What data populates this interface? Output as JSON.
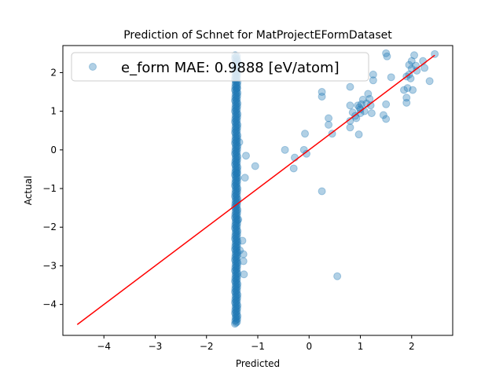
{
  "chart_data": {
    "type": "scatter",
    "title": "Prediction of Schnet for MatProjectEFormDataset",
    "xlabel": "Predicted",
    "ylabel": "Actual",
    "xlim": [
      -4.8,
      2.8
    ],
    "ylim": [
      -4.8,
      2.7
    ],
    "xticks": [
      -4,
      -3,
      -2,
      -1,
      0,
      1,
      2
    ],
    "yticks": [
      -4,
      -3,
      -2,
      -1,
      0,
      1,
      2
    ],
    "xtick_labels": [
      "−4",
      "−3",
      "−2",
      "−1",
      "0",
      "1",
      "2"
    ],
    "ytick_labels": [
      "−4",
      "−3",
      "−2",
      "−1",
      "0",
      "1",
      "2"
    ],
    "grid": false,
    "legend_position": "top",
    "series": [
      {
        "name": "e_form MAE: 0.9888 [eV/atom]",
        "color": "#1f77b4",
        "alpha": 0.35,
        "cluster": {
          "x": -1.42,
          "x_spread": 0.05,
          "y_min": -4.5,
          "y_max": 2.45,
          "step": 0.025
        },
        "points": [
          [
            -1.38,
            2.2
          ],
          [
            -1.4,
            1.6
          ],
          [
            -1.36,
            0.2
          ],
          [
            -1.4,
            -0.6
          ],
          [
            -1.38,
            -1.8
          ],
          [
            -1.35,
            -2.6
          ],
          [
            -1.3,
            -2.35
          ],
          [
            -1.28,
            -2.7
          ],
          [
            -1.28,
            -2.88
          ],
          [
            -1.27,
            -3.22
          ],
          [
            -1.23,
            -0.15
          ],
          [
            -1.25,
            -0.72
          ],
          [
            -1.05,
            -0.42
          ],
          [
            -0.47,
            0.0
          ],
          [
            -0.28,
            -0.2
          ],
          [
            -0.3,
            -0.48
          ],
          [
            -0.1,
            0.0
          ],
          [
            -0.08,
            0.42
          ],
          [
            -0.05,
            -0.1
          ],
          [
            0.25,
            1.5
          ],
          [
            0.25,
            1.38
          ],
          [
            0.25,
            -1.07
          ],
          [
            0.38,
            0.82
          ],
          [
            0.38,
            0.65
          ],
          [
            0.45,
            0.42
          ],
          [
            0.55,
            -3.27
          ],
          [
            0.8,
            1.15
          ],
          [
            0.8,
            0.75
          ],
          [
            0.8,
            0.58
          ],
          [
            0.8,
            1.63
          ],
          [
            0.85,
            0.97
          ],
          [
            0.9,
            0.88
          ],
          [
            0.92,
            0.82
          ],
          [
            0.95,
            1.15
          ],
          [
            0.98,
            1.1
          ],
          [
            1.0,
            1.05
          ],
          [
            1.0,
            0.95
          ],
          [
            0.97,
            0.4
          ],
          [
            1.02,
            1.18
          ],
          [
            1.05,
            1.3
          ],
          [
            1.08,
            1.0
          ],
          [
            1.12,
            1.2
          ],
          [
            1.15,
            1.45
          ],
          [
            1.18,
            1.32
          ],
          [
            1.2,
            1.15
          ],
          [
            1.22,
            0.95
          ],
          [
            1.25,
            1.8
          ],
          [
            1.25,
            1.95
          ],
          [
            1.45,
            0.9
          ],
          [
            1.5,
            0.8
          ],
          [
            1.5,
            1.18
          ],
          [
            1.5,
            2.5
          ],
          [
            1.52,
            2.42
          ],
          [
            1.6,
            1.88
          ],
          [
            1.85,
            1.55
          ],
          [
            1.9,
            1.35
          ],
          [
            1.9,
            1.22
          ],
          [
            1.92,
            1.6
          ],
          [
            1.95,
            1.95
          ],
          [
            1.98,
            1.85
          ],
          [
            2.0,
            2.1
          ],
          [
            2.0,
            2.3
          ],
          [
            2.02,
            1.55
          ],
          [
            2.05,
            2.45
          ],
          [
            2.08,
            2.18
          ],
          [
            2.1,
            2.05
          ],
          [
            2.22,
            2.3
          ],
          [
            2.25,
            2.12
          ],
          [
            2.35,
            1.78
          ],
          [
            2.45,
            2.48
          ],
          [
            1.95,
            2.2
          ],
          [
            1.9,
            1.9
          ]
        ]
      }
    ],
    "reference_line": {
      "color": "#ff0000",
      "from": [
        -4.52,
        -4.52
      ],
      "to": [
        2.45,
        2.45
      ]
    }
  }
}
